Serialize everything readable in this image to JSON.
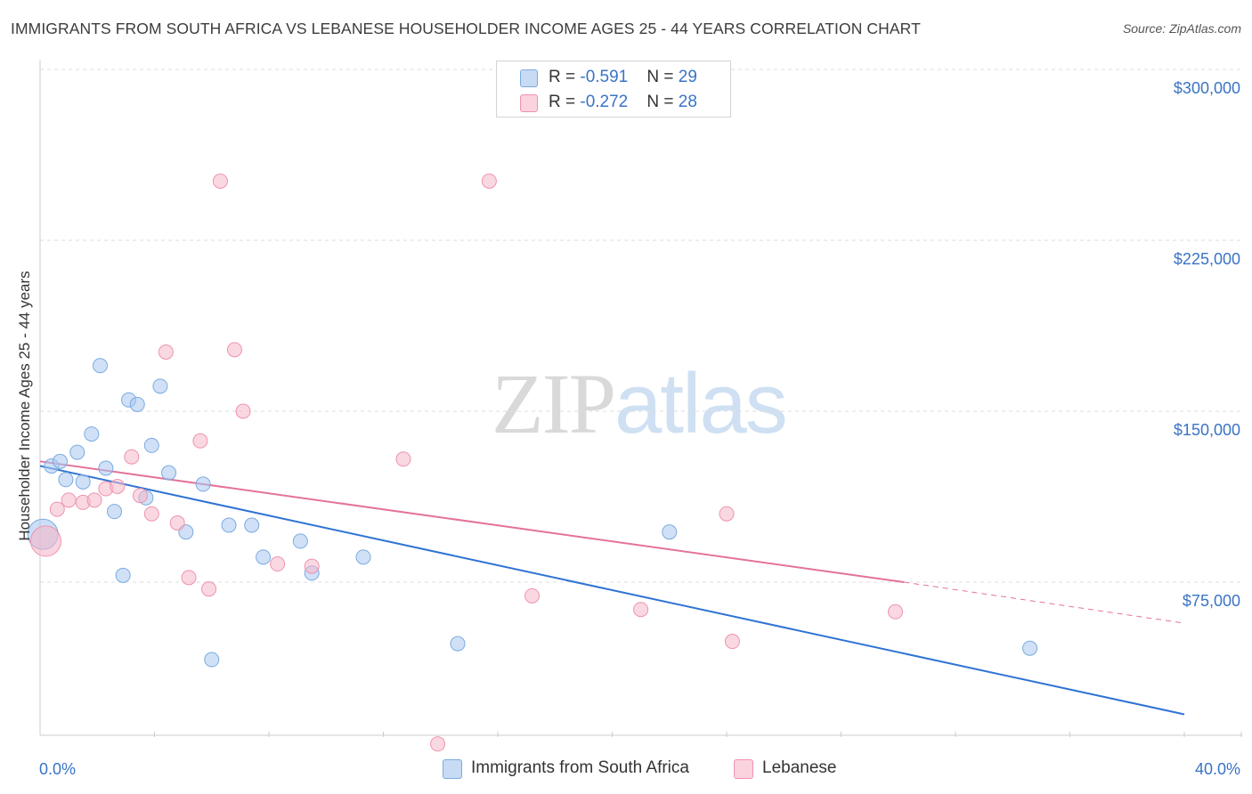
{
  "header": {
    "title": "IMMIGRANTS FROM SOUTH AFRICA VS LEBANESE HOUSEHOLDER INCOME AGES 25 - 44 YEARS CORRELATION CHART",
    "source": "Source: ZipAtlas.com"
  },
  "watermark": {
    "zip": "ZIP",
    "atlas": "atlas"
  },
  "legend": {
    "rows": [
      {
        "r_label": "R = ",
        "r_value": "-0.591",
        "n_label": "N = ",
        "n_value": "29",
        "color": "#a9c8f0"
      },
      {
        "r_label": "R = ",
        "r_value": "-0.272",
        "n_label": "N = ",
        "n_value": "28",
        "color": "#f6b8cb"
      }
    ]
  },
  "bottom_legend": {
    "items": [
      {
        "label": "Immigrants from South Africa",
        "color": "#a9c8f0"
      },
      {
        "label": "Lebanese",
        "color": "#f6b8cb"
      }
    ]
  },
  "chart_data": {
    "type": "scatter",
    "title": "IMMIGRANTS FROM SOUTH AFRICA VS LEBANESE HOUSEHOLDER INCOME AGES 25 - 44 YEARS CORRELATION CHART",
    "xlabel": "",
    "ylabel": "Householder Income Ages 25 - 44 years",
    "xlim": [
      0,
      40
    ],
    "ylim": [
      0,
      310000
    ],
    "x_tick_labels": [
      "0.0%",
      "40.0%"
    ],
    "y_ticks": [
      75000,
      150000,
      225000,
      300000
    ],
    "y_tick_labels": [
      "$75,000",
      "$150,000",
      "$225,000",
      "$300,000"
    ],
    "grid": true,
    "legend_position": "top-center",
    "series": [
      {
        "name": "Immigrants from South Africa",
        "color": "#a9c8f0",
        "stroke": "#7aaae0",
        "line_color": "#2f73d4",
        "trend": {
          "x": [
            0,
            40
          ],
          "y": [
            126000,
            17000
          ]
        },
        "points": [
          {
            "x": 0.1,
            "y": 96000,
            "big": true
          },
          {
            "x": 0.4,
            "y": 126000
          },
          {
            "x": 0.7,
            "y": 128000
          },
          {
            "x": 0.9,
            "y": 120000
          },
          {
            "x": 1.3,
            "y": 132000
          },
          {
            "x": 1.5,
            "y": 119000
          },
          {
            "x": 1.8,
            "y": 140000
          },
          {
            "x": 2.1,
            "y": 170000
          },
          {
            "x": 2.3,
            "y": 125000
          },
          {
            "x": 2.6,
            "y": 106000
          },
          {
            "x": 2.9,
            "y": 78000
          },
          {
            "x": 3.1,
            "y": 155000
          },
          {
            "x": 3.4,
            "y": 153000
          },
          {
            "x": 3.7,
            "y": 112000
          },
          {
            "x": 3.9,
            "y": 135000
          },
          {
            "x": 4.2,
            "y": 161000
          },
          {
            "x": 4.5,
            "y": 123000
          },
          {
            "x": 5.1,
            "y": 97000
          },
          {
            "x": 5.7,
            "y": 118000
          },
          {
            "x": 6.0,
            "y": 41000
          },
          {
            "x": 6.6,
            "y": 100000
          },
          {
            "x": 7.4,
            "y": 100000
          },
          {
            "x": 7.8,
            "y": 86000
          },
          {
            "x": 9.1,
            "y": 93000
          },
          {
            "x": 9.5,
            "y": 79000
          },
          {
            "x": 11.3,
            "y": 86000
          },
          {
            "x": 14.6,
            "y": 48000
          },
          {
            "x": 22.0,
            "y": 97000
          },
          {
            "x": 34.6,
            "y": 46000
          }
        ]
      },
      {
        "name": "Lebanese",
        "color": "#f6b8cb",
        "stroke": "#ee93ad",
        "line_color": "#e4729b",
        "trend": {
          "x": [
            0,
            30.2
          ],
          "y": [
            128000,
            75000
          ]
        },
        "trend_dashed": {
          "x": [
            30.2,
            40
          ],
          "y": [
            75000,
            57000
          ]
        },
        "points": [
          {
            "x": 0.2,
            "y": 93000,
            "big": true
          },
          {
            "x": 0.6,
            "y": 107000
          },
          {
            "x": 1.0,
            "y": 111000
          },
          {
            "x": 1.5,
            "y": 110000
          },
          {
            "x": 1.9,
            "y": 111000
          },
          {
            "x": 2.3,
            "y": 116000
          },
          {
            "x": 2.7,
            "y": 117000
          },
          {
            "x": 3.2,
            "y": 130000
          },
          {
            "x": 3.5,
            "y": 113000
          },
          {
            "x": 3.9,
            "y": 105000
          },
          {
            "x": 4.4,
            "y": 176000
          },
          {
            "x": 4.8,
            "y": 101000
          },
          {
            "x": 5.2,
            "y": 77000
          },
          {
            "x": 5.6,
            "y": 137000
          },
          {
            "x": 5.9,
            "y": 72000
          },
          {
            "x": 6.3,
            "y": 251000
          },
          {
            "x": 6.8,
            "y": 177000
          },
          {
            "x": 7.1,
            "y": 150000
          },
          {
            "x": 8.3,
            "y": 83000
          },
          {
            "x": 9.5,
            "y": 82000
          },
          {
            "x": 12.7,
            "y": 129000
          },
          {
            "x": 13.9,
            "y": 4000
          },
          {
            "x": 15.7,
            "y": 251000
          },
          {
            "x": 17.2,
            "y": 69000
          },
          {
            "x": 21.0,
            "y": 63000
          },
          {
            "x": 24.0,
            "y": 105000
          },
          {
            "x": 24.2,
            "y": 49000
          },
          {
            "x": 29.9,
            "y": 62000
          }
        ]
      }
    ]
  }
}
